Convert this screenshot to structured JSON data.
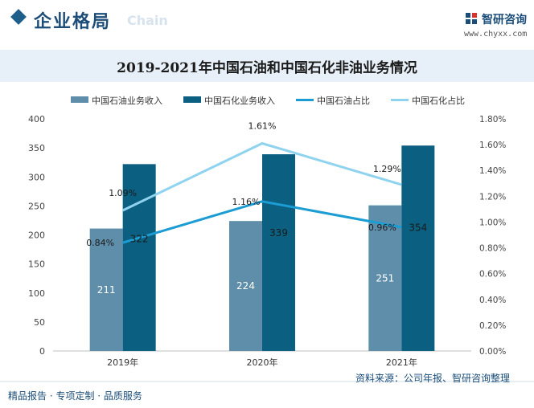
{
  "header": {
    "section_title": "企业格局",
    "section_ghost": "Chain",
    "brand_name": "智研咨询",
    "brand_url": "www.chyxx.com"
  },
  "footer": {
    "left": "精品报告 · 专项定制 · 品质服务",
    "source": "资料来源：公司年报、智研咨询整理"
  },
  "colors": {
    "sinopec_bar": "#5e8ea9",
    "sinopec_chem_bar": "#0b5f80",
    "sinopec_line": "#1b9cd3",
    "sinopec_chem_line": "#8fd3ef"
  },
  "chart_data": {
    "type": "bar",
    "title": "2019-2021年中国石油和中国石化非油业务情况",
    "categories": [
      "2019年",
      "2020年",
      "2021年"
    ],
    "series": [
      {
        "name": "中国石油业务收入",
        "kind": "bar",
        "axis": "left",
        "values": [
          211,
          224,
          251
        ],
        "labels": [
          "211",
          "224",
          "251"
        ]
      },
      {
        "name": "中国石化业务收入",
        "kind": "bar",
        "axis": "left",
        "values": [
          322,
          339,
          354
        ],
        "labels": [
          "322",
          "339",
          "354"
        ]
      },
      {
        "name": "中国石油占比",
        "kind": "line",
        "axis": "right",
        "values": [
          0.84,
          1.16,
          0.96
        ],
        "labels": [
          "0.84%",
          "1.16%",
          "0.96%"
        ]
      },
      {
        "name": "中国石化占比",
        "kind": "line",
        "axis": "right",
        "values": [
          1.09,
          1.61,
          1.29
        ],
        "labels": [
          "1.09%",
          "1.61%",
          "1.29%"
        ]
      }
    ],
    "y_left": {
      "min": 0,
      "max": 400,
      "ticks": [
        0,
        50,
        100,
        150,
        200,
        250,
        300,
        350,
        400
      ],
      "tick_labels": [
        "0",
        "50",
        "100",
        "150",
        "200",
        "250",
        "300",
        "350",
        "400"
      ]
    },
    "y_right": {
      "min": 0,
      "max": 1.8,
      "ticks": [
        0,
        0.2,
        0.4,
        0.6,
        0.8,
        1.0,
        1.2,
        1.4,
        1.6,
        1.8
      ],
      "tick_labels": [
        "0.00%",
        "0.20%",
        "0.40%",
        "0.60%",
        "0.80%",
        "1.00%",
        "1.20%",
        "1.40%",
        "1.60%",
        "1.80%"
      ]
    },
    "grid": false,
    "legend": "top"
  }
}
